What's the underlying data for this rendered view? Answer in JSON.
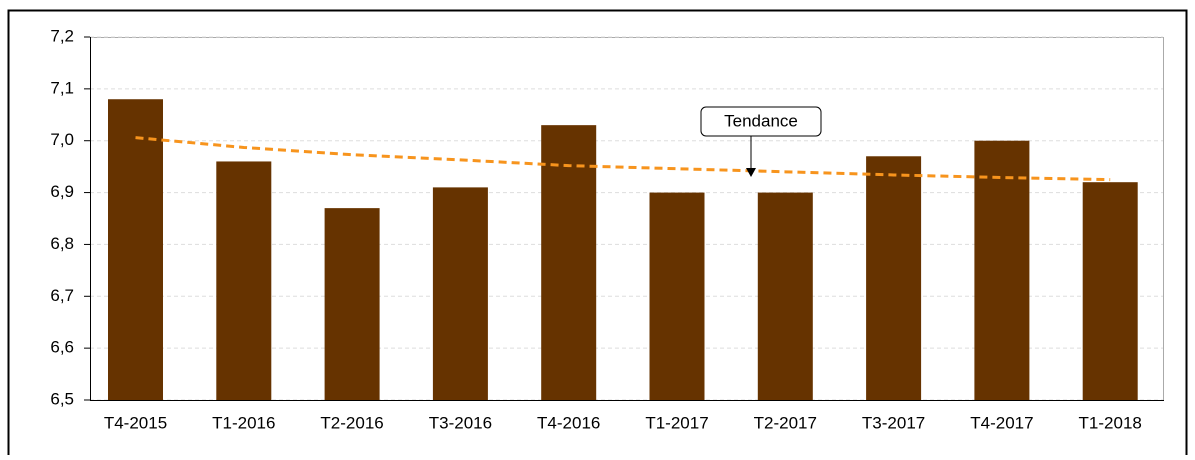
{
  "chart_data": {
    "type": "bar",
    "categories": [
      "T4-2015",
      "T1-2016",
      "T2-2016",
      "T3-2016",
      "T4-2016",
      "T1-2017",
      "T2-2017",
      "T3-2017",
      "T4-2017",
      "T1-2018"
    ],
    "values": [
      7.08,
      6.96,
      6.87,
      6.91,
      7.03,
      6.9,
      6.9,
      6.97,
      7.0,
      6.92
    ],
    "color": "#663300",
    "trend": {
      "values": [
        7.006,
        6.987,
        6.973,
        6.963,
        6.952,
        6.946,
        6.94,
        6.934,
        6.929,
        6.925
      ],
      "color": "#f7941d",
      "dashed": true
    },
    "annotation": "Tendance",
    "ylim": [
      6.5,
      7.2
    ],
    "yticks": [
      {
        "value": 6.5,
        "label": "6,5"
      },
      {
        "value": 6.6,
        "label": "6,6"
      },
      {
        "value": 6.7,
        "label": "6,7"
      },
      {
        "value": 6.8,
        "label": "6,8"
      },
      {
        "value": 6.9,
        "label": "6,9"
      },
      {
        "value": 7.0,
        "label": "7,0"
      },
      {
        "value": 7.1,
        "label": "7,1"
      },
      {
        "value": 7.2,
        "label": "7,2"
      }
    ],
    "grid": true
  }
}
